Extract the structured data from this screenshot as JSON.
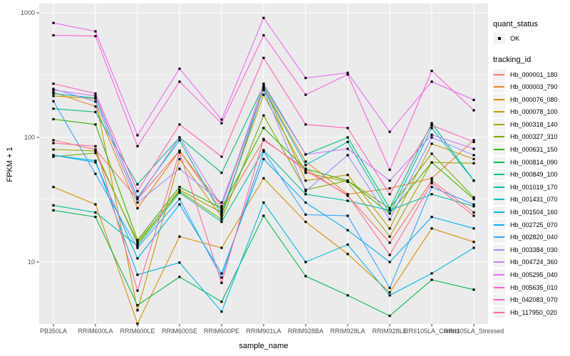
{
  "legend": {
    "quant_status_title": "quant_status",
    "quant_status_items": [
      "OK"
    ],
    "tracking_id_title": "tracking_id"
  },
  "chart_data": {
    "type": "line",
    "title": "",
    "xlabel": "sample_name",
    "ylabel": "FPKM + 1",
    "yscale": "log10",
    "ylim": [
      3.2,
      1180
    ],
    "yticks": [
      10,
      100,
      1000
    ],
    "minor_gridlines": [
      3.162,
      31.62,
      316.2
    ],
    "grid": "on",
    "legend_position": "right",
    "panel_bg": "#EBEBEB",
    "grid_color": "#FFFFFF",
    "tick_text_color": "#4D4D4D",
    "marker": "small-black-point",
    "categories": [
      "PB350LA",
      "RRIM600LA",
      "RRIM600LE",
      "RRIM600SE",
      "RRIM600PE",
      "RRIM901LA",
      "RRIM928BA",
      "RRIM928LA",
      "RRIM928LE",
      "RRII105LA_Control",
      "RRII105LA_Stressed"
    ],
    "series": [
      {
        "name": "Hb_000001_180",
        "color": "#F8766D",
        "values": [
          95,
          80,
          32,
          78,
          26,
          95,
          56,
          34,
          14.3,
          45,
          25
        ]
      },
      {
        "name": "Hb_000003_790",
        "color": "#E88526",
        "values": [
          230,
          177,
          27,
          78,
          28,
          250,
          64,
          35,
          39,
          47,
          95
        ]
      },
      {
        "name": "Hb_000076_080",
        "color": "#D89000",
        "values": [
          40,
          29,
          3.2,
          16,
          13,
          47,
          21,
          11.6,
          5.7,
          18.6,
          14.5
        ]
      },
      {
        "name": "Hb_000078_100",
        "color": "#C49A00",
        "values": [
          215,
          205,
          4.1,
          67,
          23,
          255,
          45,
          50,
          18.6,
          89,
          67
        ]
      },
      {
        "name": "Hb_000318_140",
        "color": "#A3A500",
        "values": [
          80,
          78,
          14,
          38,
          25,
          220,
          52,
          44,
          16,
          63,
          62
        ]
      },
      {
        "name": "Hb_000327_310",
        "color": "#7CAE00",
        "values": [
          70,
          75,
          14.5,
          37,
          22,
          150,
          38,
          45,
          27,
          74,
          33
        ]
      },
      {
        "name": "Hb_000631_150",
        "color": "#39B600",
        "values": [
          140,
          127,
          15,
          40,
          27,
          119,
          56,
          45,
          24.5,
          63,
          32
        ]
      },
      {
        "name": "Hb_000814_090",
        "color": "#00BB4E",
        "values": [
          26,
          23,
          4.5,
          7.6,
          4.8,
          23.5,
          7.7,
          5.4,
          3.7,
          7.2,
          6
        ]
      },
      {
        "name": "Hb_000849_100",
        "color": "#00BF7D",
        "values": [
          170,
          160,
          42,
          100,
          52,
          260,
          73,
          100,
          27,
          130,
          45
        ]
      },
      {
        "name": "Hb_001019_170",
        "color": "#00C1A3",
        "values": [
          28.5,
          25,
          13.5,
          36,
          21,
          79,
          35,
          31,
          26,
          35,
          28
        ]
      },
      {
        "name": "Hb_001431_070",
        "color": "#00BFC4",
        "values": [
          225,
          207,
          33,
          95,
          24,
          245,
          60,
          92,
          24.5,
          119,
          45
        ]
      },
      {
        "name": "Hb_001504_160",
        "color": "#00BAE0",
        "values": [
          72,
          65,
          7.9,
          9.9,
          4,
          30,
          10,
          13.8,
          5.4,
          8.1,
          13
        ]
      },
      {
        "name": "Hb_002725_070",
        "color": "#00B0F6",
        "values": [
          72,
          63,
          10.7,
          29,
          8.1,
          67,
          30,
          18,
          10,
          23,
          18.6
        ]
      },
      {
        "name": "Hb_002820_040",
        "color": "#35A2FF",
        "values": [
          195,
          51,
          13,
          32,
          7.5,
          77,
          24,
          23.5,
          6.2,
          40,
          29
        ]
      },
      {
        "name": "Hb_003384_030",
        "color": "#9590FF",
        "values": [
          245,
          194,
          30,
          56,
          30,
          240,
          37,
          72,
          22,
          100,
          72
        ]
      },
      {
        "name": "Hb_004724_360",
        "color": "#C77CFF",
        "values": [
          240,
          215,
          32,
          100,
          28,
          270,
          73,
          81,
          45,
          105,
          81
        ]
      },
      {
        "name": "Hb_005295_040",
        "color": "#E76BF3",
        "values": [
          830,
          710,
          104,
          356,
          139,
          910,
          300,
          330,
          111,
          280,
          200
        ]
      },
      {
        "name": "Hb_005635_010",
        "color": "#FA62DB",
        "values": [
          660,
          650,
          85,
          280,
          130,
          660,
          220,
          320,
          55,
          342,
          165
        ]
      },
      {
        "name": "Hb_042083_070",
        "color": "#FF62BC",
        "values": [
          270,
          225,
          37,
          127,
          70,
          435,
          127,
          119,
          35,
          125,
          92
        ]
      },
      {
        "name": "Hb_117950_020",
        "color": "#FF6A98",
        "values": [
          90,
          85,
          5.9,
          76,
          6.8,
          97,
          54,
          34.5,
          11.4,
          43,
          23.5
        ]
      }
    ]
  }
}
